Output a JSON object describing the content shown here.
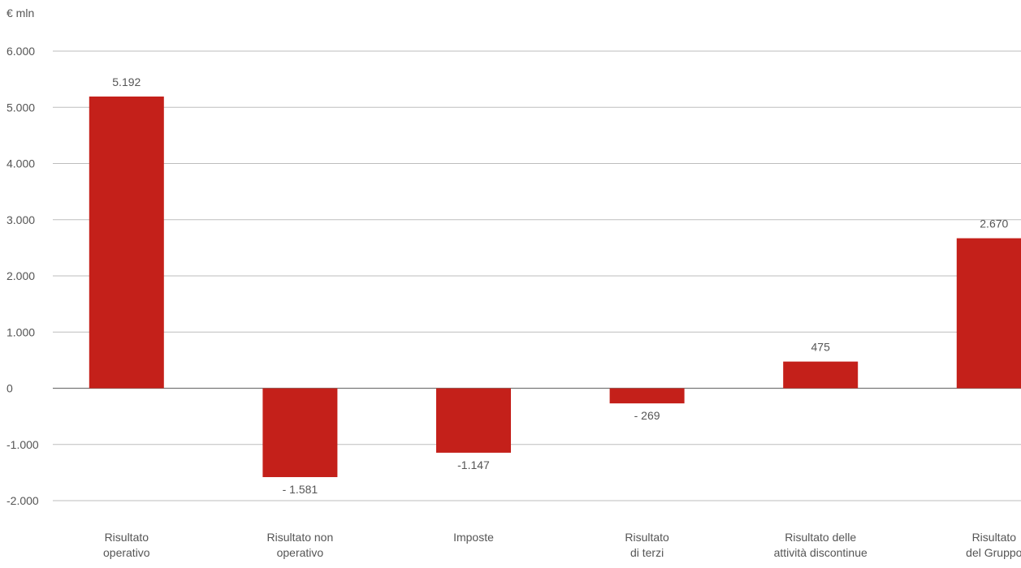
{
  "chart_data": {
    "type": "bar",
    "title": "",
    "unit_label": "€ mln",
    "xlabel": "",
    "ylabel": "",
    "ylim": [
      -2000,
      6000
    ],
    "yticks": [
      6000,
      5000,
      4000,
      3000,
      2000,
      1000,
      0,
      -1000,
      -2000
    ],
    "ytick_labels": [
      "6.000",
      "5.000",
      "4.000",
      "3.000",
      "2.000",
      "1.000",
      "0",
      "-1.000",
      "-2.000"
    ],
    "grid": true,
    "legend": "none",
    "bar_color": "#C4201A",
    "categories": [
      [
        "Risultato",
        "operativo"
      ],
      [
        "Risultato non",
        "operativo"
      ],
      [
        "Imposte"
      ],
      [
        "Risultato",
        "di terzi"
      ],
      [
        "Risultato delle",
        "attività discontinue"
      ],
      [
        "Risultato",
        "del Gruppo"
      ]
    ],
    "values": [
      5192,
      -1581,
      -1147,
      -269,
      475,
      2670
    ],
    "value_labels": [
      "5.192",
      "- 1.581",
      "-1.147",
      "- 269",
      "475",
      "2.670"
    ]
  }
}
